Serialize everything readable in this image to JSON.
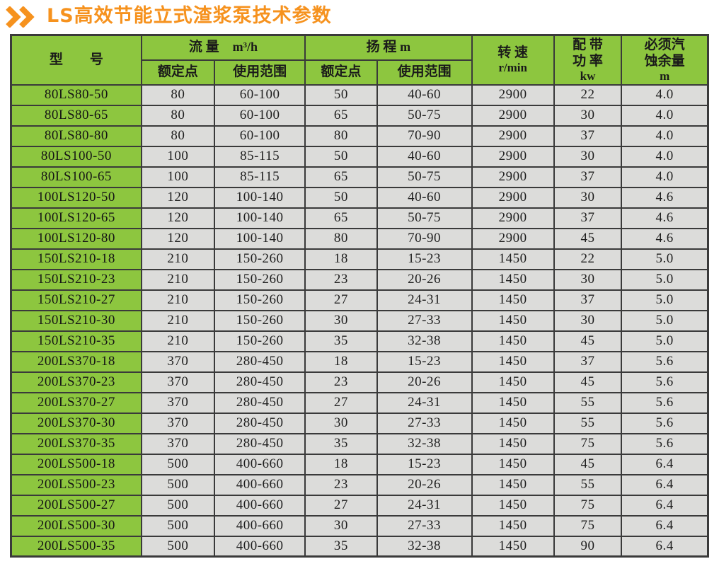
{
  "title": {
    "text": "LS高效节能立式渣浆泵技术参数"
  },
  "colors": {
    "accent_orange": "#f6921e",
    "header_green": "#8dc63f",
    "cell_gray": "#dcdcda",
    "border_dark": "#3a3a3a"
  },
  "table": {
    "headers": {
      "model": "型　　号",
      "flow": {
        "label": "流 量",
        "unit": "m³/h"
      },
      "head": {
        "label": "扬 程",
        "unit": "m"
      },
      "rated_point_flow": "额定点",
      "usage_range_flow": "使用范围",
      "rated_point_head": "额定点",
      "usage_range_head": "使用范围",
      "speed": {
        "label": "转 速",
        "unit": "r/min"
      },
      "power": {
        "label_line1": "配 带",
        "label_line2": "功 率",
        "unit": "kw"
      },
      "npsh": {
        "label_line1": "必须汽",
        "label_line2": "蚀余量",
        "unit": "m"
      }
    },
    "rows": [
      [
        "80LS80-50",
        "80",
        "60-100",
        "50",
        "40-60",
        "2900",
        "22",
        "4.0"
      ],
      [
        "80LS80-65",
        "80",
        "60-100",
        "65",
        "50-75",
        "2900",
        "30",
        "4.0"
      ],
      [
        "80LS80-80",
        "80",
        "60-100",
        "80",
        "70-90",
        "2900",
        "37",
        "4.0"
      ],
      [
        "80LS100-50",
        "100",
        "85-115",
        "50",
        "40-60",
        "2900",
        "30",
        "4.0"
      ],
      [
        "80LS100-65",
        "100",
        "85-115",
        "65",
        "50-75",
        "2900",
        "37",
        "4.0"
      ],
      [
        "100LS120-50",
        "120",
        "100-140",
        "50",
        "40-60",
        "2900",
        "30",
        "4.6"
      ],
      [
        "100LS120-65",
        "120",
        "100-140",
        "65",
        "50-75",
        "2900",
        "37",
        "4.6"
      ],
      [
        "100LS120-80",
        "120",
        "100-140",
        "80",
        "70-90",
        "2900",
        "45",
        "4.6"
      ],
      [
        "150LS210-18",
        "210",
        "150-260",
        "18",
        "15-23",
        "1450",
        "22",
        "5.0"
      ],
      [
        "150LS210-23",
        "210",
        "150-260",
        "23",
        "20-26",
        "1450",
        "30",
        "5.0"
      ],
      [
        "150LS210-27",
        "210",
        "150-260",
        "27",
        "24-31",
        "1450",
        "37",
        "5.0"
      ],
      [
        "150LS210-30",
        "210",
        "150-260",
        "30",
        "27-33",
        "1450",
        "30",
        "5.0"
      ],
      [
        "150LS210-35",
        "210",
        "150-260",
        "35",
        "32-38",
        "1450",
        "45",
        "5.0"
      ],
      [
        "200LS370-18",
        "370",
        "280-450",
        "18",
        "15-23",
        "1450",
        "37",
        "5.6"
      ],
      [
        "200LS370-23",
        "370",
        "280-450",
        "23",
        "20-26",
        "1450",
        "45",
        "5.6"
      ],
      [
        "200LS370-27",
        "370",
        "280-450",
        "27",
        "24-31",
        "1450",
        "55",
        "5.6"
      ],
      [
        "200LS370-30",
        "370",
        "280-450",
        "30",
        "27-33",
        "1450",
        "55",
        "5.6"
      ],
      [
        "200LS370-35",
        "370",
        "280-450",
        "35",
        "32-38",
        "1450",
        "75",
        "5.6"
      ],
      [
        "200LS500-18",
        "500",
        "400-660",
        "18",
        "15-23",
        "1450",
        "45",
        "6.4"
      ],
      [
        "200LS500-23",
        "500",
        "400-660",
        "23",
        "20-26",
        "1450",
        "55",
        "6.4"
      ],
      [
        "200LS500-27",
        "500",
        "400-660",
        "27",
        "24-31",
        "1450",
        "75",
        "6.4"
      ],
      [
        "200LS500-30",
        "500",
        "400-660",
        "30",
        "27-33",
        "1450",
        "75",
        "6.4"
      ],
      [
        "200LS500-35",
        "500",
        "400-660",
        "35",
        "32-38",
        "1450",
        "90",
        "6.4"
      ]
    ]
  }
}
